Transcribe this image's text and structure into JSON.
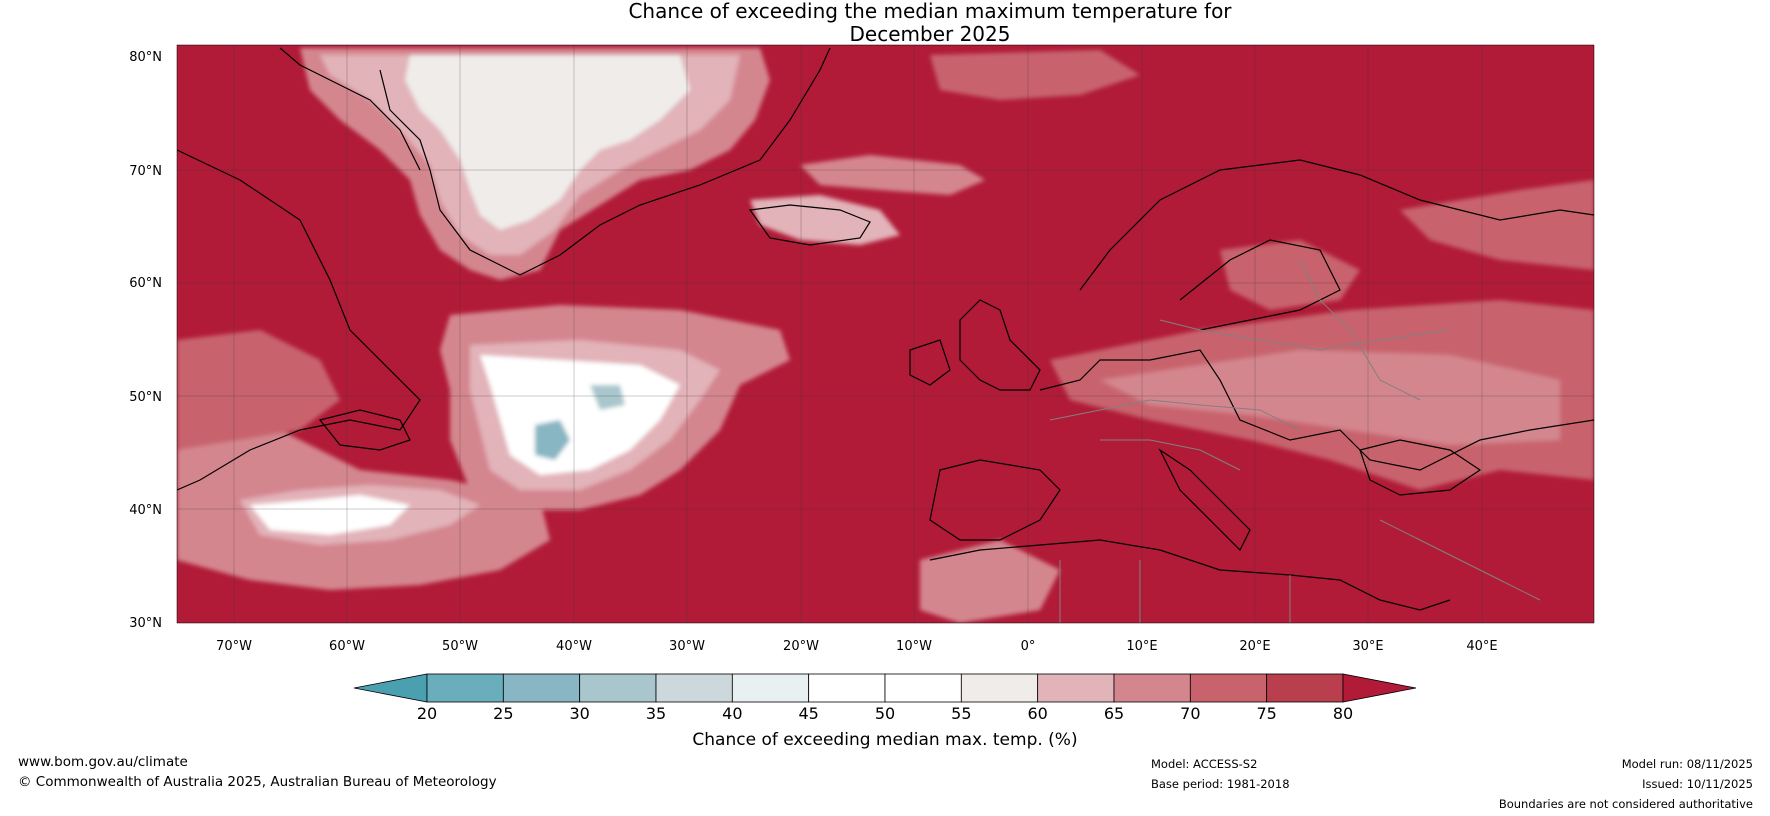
{
  "title": {
    "line1": "Chance of exceeding the median maximum temperature for",
    "line2": "December 2025"
  },
  "map": {
    "lat_labels": [
      "80°N",
      "70°N",
      "60°N",
      "50°N",
      "40°N",
      "30°N"
    ],
    "lon_labels": [
      "70°W",
      "60°W",
      "50°W",
      "40°W",
      "30°W",
      "20°W",
      "10°W",
      "0°",
      "10°E",
      "20°E",
      "30°E",
      "40°E"
    ],
    "colors": {
      "background": "#b11b38",
      "coastline": "#000000",
      "border": "#808080"
    }
  },
  "colorbar": {
    "ticks": [
      "20",
      "25",
      "30",
      "35",
      "40",
      "45",
      "50",
      "55",
      "60",
      "65",
      "70",
      "75",
      "80"
    ],
    "colors": [
      "#4a9fb0",
      "#6aaebb",
      "#88b6c2",
      "#a8c6cc",
      "#ccd8db",
      "#e8f0f2",
      "#ffffff",
      "#ffffff",
      "#efecea",
      "#e2b3b9",
      "#d4868f",
      "#c8636d",
      "#b93f4e",
      "#b11b38"
    ],
    "label": "Chance of exceeding median max. temp. (%)"
  },
  "footer": {
    "url": "www.bom.gov.au/climate",
    "copyright": "© Commonwealth of Australia 2025, Australian Bureau of Meteorology",
    "model": "Model: ACCESS-S2",
    "base_period": "Base period: 1981-2018",
    "model_run": "Model run: 08/11/2025",
    "issued": "Issued: 10/11/2025",
    "disclaimer": "Boundaries are not considered authoritative"
  }
}
